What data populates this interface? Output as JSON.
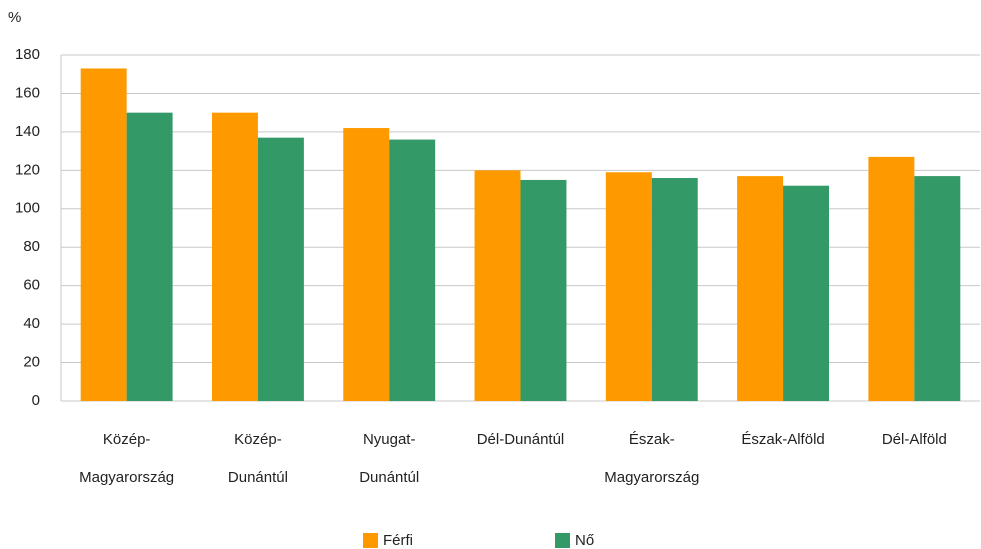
{
  "chart_data": {
    "type": "bar",
    "y_label": "%",
    "categories": [
      [
        "Közép-",
        "Magyarország"
      ],
      [
        "Közép-",
        "Dunántúl"
      ],
      [
        "Nyugat-",
        "Dunántúl"
      ],
      [
        "Dél-Dunántúl"
      ],
      [
        "Észak-",
        "Magyarország"
      ],
      [
        "Észak-Alföld"
      ],
      [
        "Dél-Alföld"
      ]
    ],
    "series": [
      {
        "name": "Férfi",
        "color": "#ff9900",
        "values": [
          173,
          150,
          142,
          120,
          119,
          117,
          127
        ]
      },
      {
        "name": "Nő",
        "color": "#339966",
        "values": [
          150,
          137,
          136,
          115,
          116,
          112,
          117
        ]
      }
    ],
    "ylim": [
      0,
      180
    ],
    "yticks": [
      0,
      20,
      40,
      60,
      80,
      100,
      120,
      140,
      160,
      180
    ],
    "grid": true,
    "legend": "bottom"
  }
}
